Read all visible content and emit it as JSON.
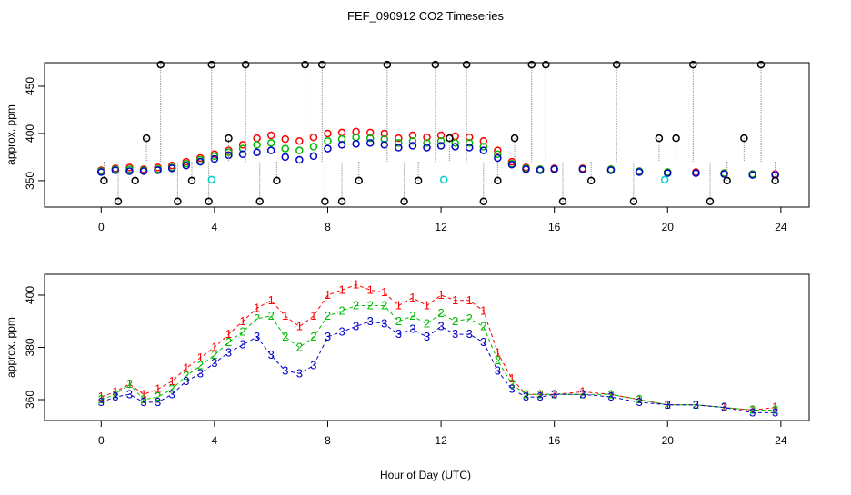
{
  "chart_data": {
    "type": "scatter",
    "title": "FEF_090912  CO2 Timeseries",
    "xlabel": "Hour of Day (UTC)",
    "colors": {
      "ch1": "#ff0000",
      "ch2": "#00bb00",
      "ch3": "#0000cc",
      "spike": "#000000",
      "cal": "#00cccc",
      "line": "#888888"
    },
    "panels": [
      {
        "id": "top",
        "ylabel": "approx. ppm",
        "xlim": [
          -2,
          25
        ],
        "ylim": [
          322,
          475
        ],
        "xticks": [
          "0",
          "4",
          "8",
          "12",
          "16",
          "20",
          "24"
        ],
        "yticks": [
          "350",
          "400",
          "450"
        ],
        "series": [
          {
            "key": "ch1",
            "marker": "circle",
            "x": [
              0,
              0.5,
              1,
              1.5,
              2,
              2.5,
              3,
              3.5,
              4,
              4.5,
              5,
              5.5,
              6,
              6.5,
              7,
              7.5,
              8,
              8.5,
              9,
              9.5,
              10,
              10.5,
              11,
              11.5,
              12,
              12.5,
              13,
              13.5,
              14,
              14.5,
              15,
              15.5,
              16,
              17,
              18,
              19,
              20,
              21,
              22,
              23,
              23.8
            ],
            "y": [
              361,
              363,
              364,
              362,
              364,
              366,
              370,
              374,
              378,
              382,
              388,
              395,
              398,
              394,
              392,
              396,
              400,
              401,
              402,
              401,
              400,
              395,
              398,
              396,
              398,
              397,
              396,
              392,
              382,
              370,
              364,
              362,
              363,
              363,
              362,
              360,
              359,
              359,
              358,
              357,
              357
            ]
          },
          {
            "key": "ch2",
            "marker": "circle",
            "x": [
              0,
              0.5,
              1,
              1.5,
              2,
              2.5,
              3,
              3.5,
              4,
              4.5,
              5,
              5.5,
              6,
              6.5,
              7,
              7.5,
              8,
              8.5,
              9,
              9.5,
              10,
              10.5,
              11,
              11.5,
              12,
              12.5,
              13,
              13.5,
              14,
              14.5,
              15,
              15.5,
              16,
              17,
              18,
              19,
              20,
              21,
              22,
              23,
              23.8
            ],
            "y": [
              360,
              362,
              362,
              361,
              362,
              364,
              368,
              372,
              376,
              380,
              384,
              388,
              390,
              384,
              382,
              386,
              392,
              394,
              396,
              395,
              394,
              390,
              392,
              390,
              392,
              390,
              390,
              386,
              378,
              368,
              363,
              362,
              362,
              362,
              362,
              360,
              359,
              358,
              358,
              357,
              356
            ]
          },
          {
            "key": "ch3",
            "marker": "circle",
            "x": [
              0,
              0.5,
              1,
              1.5,
              2,
              2.5,
              3,
              3.5,
              4,
              4.5,
              5,
              5.5,
              6,
              6.5,
              7,
              7.5,
              8,
              8.5,
              9,
              9.5,
              10,
              10.5,
              11,
              11.5,
              12,
              12.5,
              13,
              13.5,
              14,
              14.5,
              15,
              15.5,
              16,
              17,
              18,
              19,
              20,
              21,
              22,
              23,
              23.8
            ],
            "y": [
              359,
              361,
              360,
              360,
              361,
              363,
              366,
              370,
              373,
              377,
              378,
              380,
              382,
              375,
              372,
              376,
              384,
              388,
              389,
              390,
              388,
              385,
              387,
              385,
              387,
              386,
              385,
              382,
              374,
              367,
              362,
              361,
              362,
              362,
              361,
              359,
              358,
              358,
              357,
              356,
              356
            ]
          },
          {
            "key": "spike",
            "marker": "circle",
            "drop_lines": true,
            "x": [
              0.1,
              0.6,
              1.2,
              1.6,
              2.1,
              2.7,
              3.2,
              3.8,
              3.9,
              4.5,
              5.1,
              5.6,
              6.2,
              7.2,
              7.8,
              7.9,
              8.5,
              9.1,
              10.1,
              10.7,
              11.2,
              11.8,
              12.3,
              12.9,
              13.5,
              14.0,
              14.6,
              15.2,
              15.7,
              16.3,
              17.3,
              18.2,
              18.8,
              19.7,
              20.3,
              20.9,
              21.5,
              22.1,
              22.7,
              23.3,
              23.8
            ],
            "y": [
              350,
              328,
              350,
              395,
              473,
              328,
              350,
              328,
              473,
              395,
              473,
              328,
              350,
              473,
              473,
              328,
              328,
              350,
              473,
              328,
              350,
              473,
              395,
              473,
              328,
              350,
              395,
              473,
              473,
              328,
              350,
              473,
              328,
              395,
              395,
              473,
              328,
              350,
              395,
              473,
              350
            ]
          },
          {
            "key": "cal",
            "marker": "circle",
            "x": [
              3.9,
              12.1,
              19.9
            ],
            "y": [
              351,
              351,
              351
            ]
          }
        ]
      },
      {
        "id": "bottom",
        "ylabel": "approx. ppm",
        "xlim": [
          -2,
          25
        ],
        "ylim": [
          352,
          408
        ],
        "xticks": [
          "0",
          "4",
          "8",
          "12",
          "16",
          "20",
          "24"
        ],
        "yticks": [
          "360",
          "380",
          "400"
        ],
        "series": [
          {
            "key": "ch1",
            "marker": "text",
            "label": "1",
            "x": [
              0,
              0.5,
              1,
              1.5,
              2,
              2.5,
              3,
              3.5,
              4,
              4.5,
              5,
              5.5,
              6,
              6.5,
              7,
              7.5,
              8,
              8.5,
              9,
              9.5,
              10,
              10.5,
              11,
              11.5,
              12,
              12.5,
              13,
              13.5,
              14,
              14.5,
              15,
              15.5,
              16,
              17,
              18,
              19,
              20,
              21,
              22,
              23,
              23.8
            ],
            "y": [
              361,
              363,
              366,
              362,
              364,
              367,
              372,
              376,
              380,
              385,
              390,
              395,
              398,
              392,
              388,
              392,
              400,
              402,
              404,
              402,
              401,
              396,
              399,
              396,
              400,
              398,
              398,
              394,
              378,
              368,
              362,
              362,
              362,
              363,
              362,
              360,
              358,
              358,
              357,
              356,
              357
            ]
          },
          {
            "key": "ch2",
            "marker": "text",
            "label": "2",
            "x": [
              0,
              0.5,
              1,
              1.5,
              2,
              2.5,
              3,
              3.5,
              4,
              4.5,
              5,
              5.5,
              6,
              6.5,
              7,
              7.5,
              8,
              8.5,
              9,
              9.5,
              10,
              10.5,
              11,
              11.5,
              12,
              12.5,
              13,
              13.5,
              14,
              14.5,
              15,
              15.5,
              16,
              17,
              18,
              19,
              20,
              21,
              22,
              23,
              23.8
            ],
            "y": [
              360,
              362,
              366,
              360,
              361,
              364,
              369,
              373,
              377,
              382,
              386,
              391,
              392,
              384,
              380,
              384,
              392,
              394,
              396,
              396,
              396,
              390,
              392,
              389,
              393,
              390,
              391,
              388,
              375,
              366,
              362,
              362,
              362,
              362,
              362,
              360,
              358,
              358,
              357,
              356,
              356
            ]
          },
          {
            "key": "ch3",
            "marker": "text",
            "label": "3",
            "x": [
              0,
              0.5,
              1,
              1.5,
              2,
              2.5,
              3,
              3.5,
              4,
              4.5,
              5,
              5.5,
              6,
              6.5,
              7,
              7.5,
              8,
              8.5,
              9,
              9.5,
              10,
              10.5,
              11,
              11.5,
              12,
              12.5,
              13,
              13.5,
              14,
              14.5,
              15,
              15.5,
              16,
              17,
              18,
              19,
              20,
              21,
              22,
              23,
              23.8
            ],
            "y": [
              359,
              361,
              362,
              359,
              359,
              362,
              367,
              370,
              374,
              378,
              381,
              384,
              377,
              371,
              370,
              373,
              384,
              386,
              388,
              390,
              389,
              385,
              387,
              384,
              388,
              385,
              385,
              382,
              371,
              364,
              361,
              361,
              362,
              362,
              361,
              359,
              358,
              358,
              357,
              355,
              355
            ]
          }
        ]
      }
    ]
  }
}
